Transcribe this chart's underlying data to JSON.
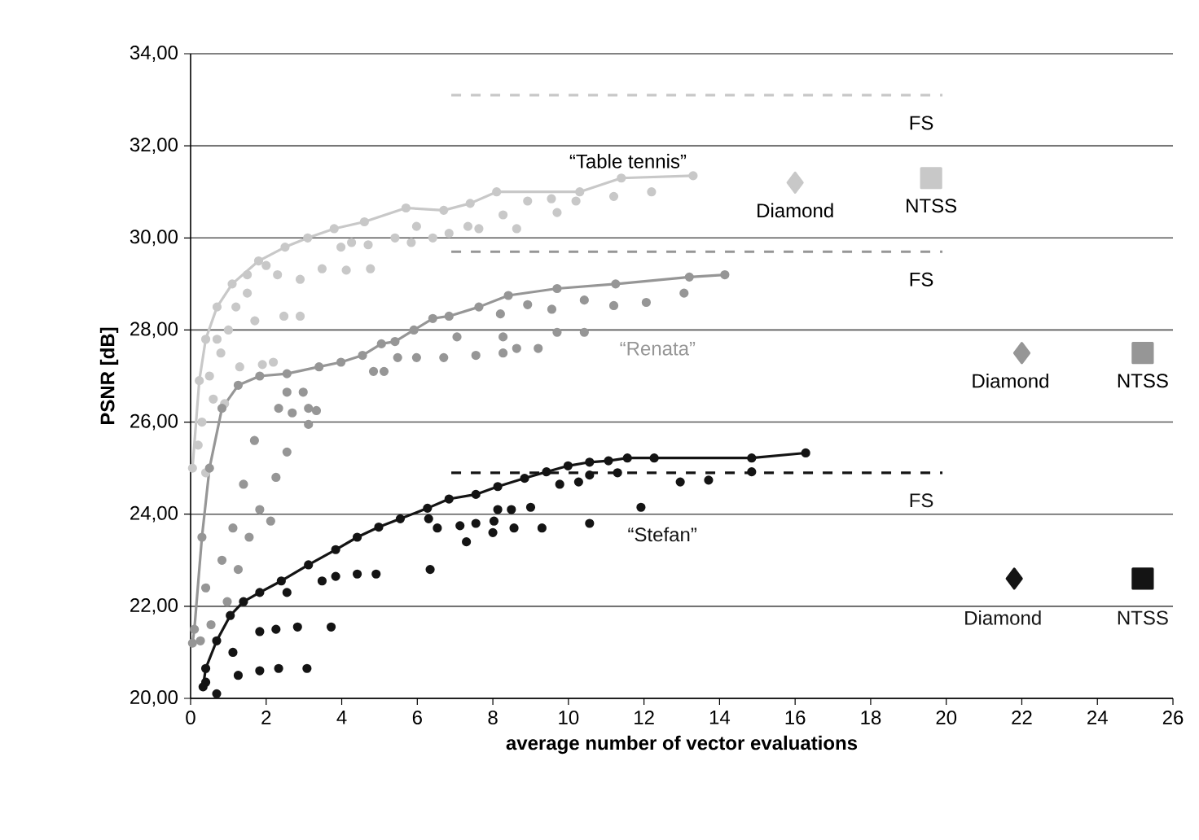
{
  "chart_data": {
    "type": "scatter",
    "xlabel": "average number of vector evaluations",
    "ylabel": "PSNR [dB]",
    "xlim": [
      0,
      26
    ],
    "ylim": [
      20,
      34
    ],
    "xticks": [
      0,
      2,
      4,
      6,
      8,
      10,
      12,
      14,
      16,
      18,
      20,
      22,
      24,
      26
    ],
    "yticks": [
      {
        "value": 20,
        "label": "20,00"
      },
      {
        "value": 22,
        "label": "22,00"
      },
      {
        "value": 24,
        "label": "24,00"
      },
      {
        "value": 26,
        "label": "26,00"
      },
      {
        "value": 28,
        "label": "28,00"
      },
      {
        "value": 30,
        "label": "30,00"
      },
      {
        "value": 32,
        "label": "32,00"
      },
      {
        "value": 34,
        "label": "34,00"
      }
    ],
    "grid": "y",
    "series": [
      {
        "marker": "circle",
        "color": "#c8c8c8",
        "x": [
          12.2,
          11.2,
          10.2,
          9.7,
          9.55,
          8.92,
          8.63,
          8.27,
          7.63,
          7.34,
          6.84,
          6.41,
          5.98,
          5.84,
          4.76,
          4.12,
          3.48,
          2.9,
          2.9,
          2.47,
          2.19,
          1.9,
          3.98,
          4.26,
          4.7,
          5.41,
          0.3,
          0.5,
          0.8,
          1.0,
          1.2,
          1.5,
          0.6,
          0.2,
          1.3,
          0.9,
          0.4,
          1.5,
          2.0,
          2.3,
          1.7,
          0.7
        ],
        "values": [
          31.0,
          30.9,
          30.8,
          30.55,
          30.85,
          30.8,
          30.2,
          30.5,
          30.2,
          30.25,
          30.1,
          30.0,
          30.25,
          29.9,
          29.33,
          29.3,
          29.33,
          29.1,
          28.3,
          28.3,
          27.3,
          27.25,
          29.8,
          29.9,
          29.85,
          30.0,
          26.0,
          27.0,
          27.5,
          28.0,
          28.5,
          28.8,
          26.5,
          25.5,
          27.2,
          26.4,
          24.9,
          29.2,
          29.4,
          29.2,
          28.2,
          27.8
        ]
      },
      {
        "name": "“Renata”",
        "marker": "circle",
        "color": "#969696",
        "x": [
          13.06,
          12.06,
          11.2,
          10.42,
          9.56,
          8.92,
          8.2,
          10.42,
          9.7,
          9.2,
          8.63,
          8.27,
          8.27,
          7.55,
          7.05,
          6.7,
          5.98,
          5.48,
          5.12,
          4.84,
          2.98,
          2.55,
          3.12,
          2.69,
          2.33,
          3.33,
          3.12,
          2.26,
          1.83,
          1.55,
          1.26,
          0.97,
          0.54,
          0.26,
          2.55,
          2.12,
          1.4,
          1.12,
          0.83,
          0.4,
          1.69
        ],
        "values": [
          28.8,
          28.6,
          28.53,
          28.65,
          28.45,
          28.55,
          28.35,
          27.95,
          27.95,
          27.6,
          27.6,
          27.85,
          27.5,
          27.45,
          27.85,
          27.4,
          27.4,
          27.4,
          27.1,
          27.1,
          26.65,
          26.65,
          26.3,
          26.2,
          26.3,
          26.25,
          25.95,
          24.8,
          24.1,
          23.5,
          22.8,
          22.1,
          21.6,
          21.25,
          25.35,
          23.85,
          24.65,
          23.7,
          23.0,
          22.4,
          25.6
        ]
      },
      {
        "marker": "circle",
        "color": "#141414",
        "x": [
          14.85,
          13.71,
          12.96,
          11.92,
          11.3,
          10.56,
          10.56,
          10.27,
          9.77,
          9.3,
          9.0,
          8.56,
          8.49,
          8.0,
          8.03,
          8.13,
          7.55,
          7.3,
          7.13,
          6.53,
          6.3,
          6.34,
          4.91,
          4.41,
          3.84,
          3.48,
          3.72,
          2.83,
          2.26,
          1.83,
          3.08,
          2.33,
          1.83,
          1.26,
          0.69,
          1.12,
          0.4,
          2.55
        ],
        "values": [
          24.92,
          24.74,
          24.7,
          24.15,
          24.9,
          23.8,
          24.85,
          24.7,
          24.65,
          23.7,
          24.15,
          23.7,
          24.1,
          23.6,
          23.85,
          24.1,
          23.8,
          23.4,
          23.75,
          23.7,
          23.9,
          22.8,
          22.7,
          22.7,
          22.65,
          22.55,
          21.55,
          21.55,
          21.5,
          21.45,
          20.65,
          20.65,
          20.6,
          20.5,
          20.1,
          21.0,
          20.35,
          22.3
        ]
      },
      {
        "name": "“Table tennis”",
        "type": "line",
        "marker": "circle",
        "color": "#c8c8c8",
        "x": [
          0.05,
          0.23,
          0.4,
          0.7,
          1.1,
          1.8,
          2.5,
          3.1,
          3.8,
          4.6,
          5.7,
          6.7,
          7.4,
          8.1,
          10.3,
          11.4,
          13.3
        ],
        "values": [
          25.0,
          26.9,
          27.8,
          28.5,
          29.0,
          29.5,
          29.8,
          30.0,
          30.2,
          30.35,
          30.65,
          30.6,
          30.75,
          31.0,
          31.0,
          31.3,
          31.35
        ]
      },
      {
        "type": "line",
        "marker": "circle",
        "color": "#969696",
        "x": [
          0.05,
          0.1,
          0.3,
          0.5,
          0.83,
          1.26,
          1.83,
          2.55,
          3.4,
          3.98,
          4.55,
          5.05,
          5.41,
          5.91,
          6.41,
          6.84,
          7.63,
          8.41,
          9.7,
          11.25,
          13.2,
          14.14
        ],
        "values": [
          21.2,
          21.5,
          23.5,
          25.0,
          26.3,
          26.8,
          27.0,
          27.05,
          27.2,
          27.3,
          27.45,
          27.7,
          27.75,
          28.0,
          28.25,
          28.3,
          28.5,
          28.75,
          28.9,
          29.0,
          29.15,
          29.2
        ]
      },
      {
        "name": "“Stefan”",
        "type": "line",
        "marker": "circle",
        "color": "#141414",
        "x": [
          0.33,
          0.4,
          0.69,
          1.05,
          1.4,
          1.83,
          2.4,
          3.12,
          3.84,
          4.41,
          4.98,
          5.55,
          6.27,
          6.84,
          7.55,
          8.13,
          8.84,
          9.42,
          9.99,
          10.56,
          11.06,
          11.56,
          12.27,
          14.85,
          16.28
        ],
        "values": [
          20.25,
          20.65,
          21.25,
          21.8,
          22.1,
          22.3,
          22.55,
          22.9,
          23.23,
          23.5,
          23.72,
          23.9,
          24.13,
          24.33,
          24.43,
          24.6,
          24.78,
          24.92,
          25.05,
          25.13,
          25.16,
          25.22,
          25.22,
          25.22,
          25.33
        ]
      },
      {
        "name": "FS",
        "type": "line",
        "marker": "none",
        "line_style": "dashed",
        "color": "#c8c8c8",
        "x": [
          6.9,
          19.9
        ],
        "values": [
          33.1,
          33.1
        ]
      },
      {
        "name": "FS",
        "type": "line",
        "marker": "none",
        "line_style": "dashed",
        "color": "#969696",
        "x": [
          6.9,
          19.9
        ],
        "values": [
          29.7,
          29.7
        ]
      },
      {
        "name": "FS",
        "type": "line",
        "marker": "none",
        "line_style": "dashed",
        "color": "#141414",
        "x": [
          6.9,
          19.9
        ],
        "values": [
          24.9,
          24.9
        ]
      },
      {
        "name": "Diamond",
        "marker": "diamond",
        "color": "#c8c8c8",
        "x": [
          16.0
        ],
        "values": [
          31.2
        ]
      },
      {
        "name": "NTSS",
        "marker": "square",
        "color": "#c8c8c8",
        "x": [
          19.6
        ],
        "values": [
          31.3
        ]
      },
      {
        "name": "Diamond",
        "marker": "diamond",
        "color": "#969696",
        "x": [
          22.0
        ],
        "values": [
          27.5
        ]
      },
      {
        "name": "NTSS",
        "marker": "square",
        "color": "#969696",
        "x": [
          25.2
        ],
        "values": [
          27.5
        ]
      },
      {
        "name": "Diamond",
        "marker": "diamond",
        "color": "#141414",
        "x": [
          21.8
        ],
        "values": [
          22.6
        ]
      },
      {
        "name": "NTSS",
        "marker": "square",
        "color": "#141414",
        "x": [
          25.2
        ],
        "values": [
          22.6
        ]
      }
    ]
  }
}
